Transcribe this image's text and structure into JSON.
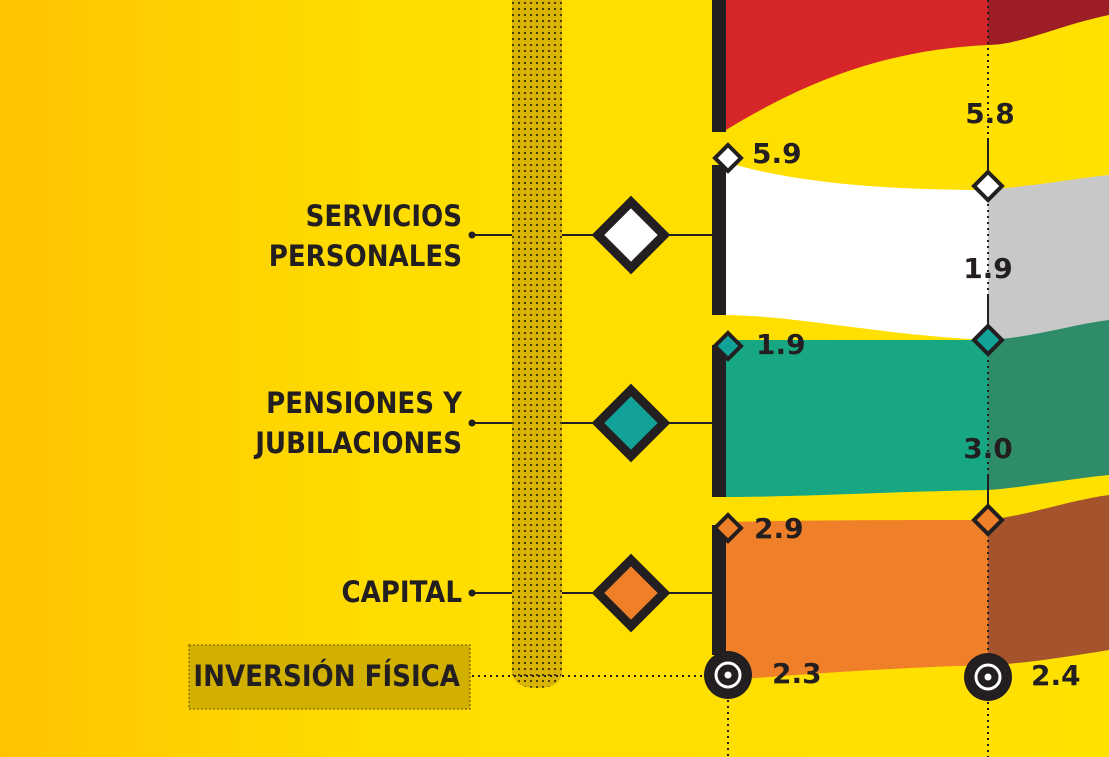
{
  "labels": [
    {
      "lines": [
        "SERVICIOS",
        "PERSONALES"
      ]
    },
    {
      "lines": [
        "PENSIONES Y",
        "JUBILACIONES"
      ]
    },
    {
      "lines": [
        "CAPITAL"
      ]
    },
    {
      "lines": [
        "INVERSIÓN FÍSICA"
      ]
    }
  ],
  "left_values": [
    "5.9",
    "1.9",
    "2.9",
    "2.3"
  ],
  "right_values": [
    "5.8",
    "1.9",
    "3.0",
    "2.4"
  ]
}
